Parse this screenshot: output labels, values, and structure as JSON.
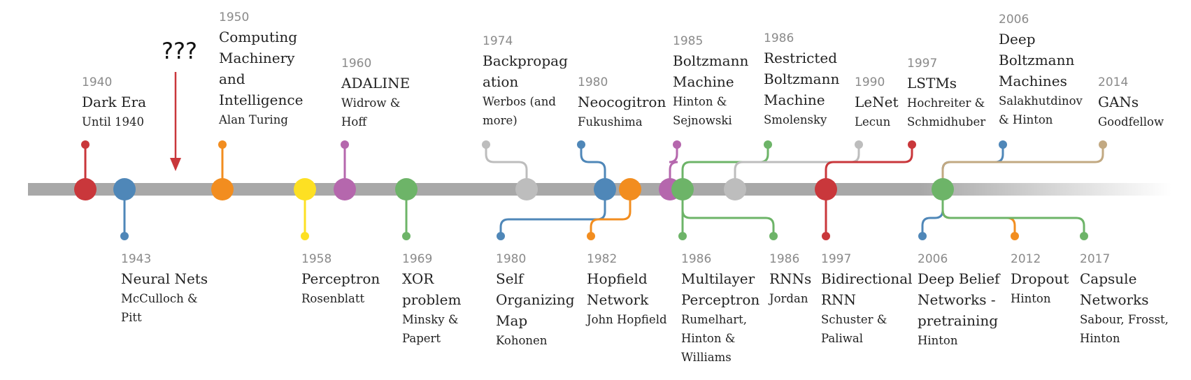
{
  "colors": {
    "red": "#c9373b",
    "blue": "#4f87b8",
    "orange": "#f28d1f",
    "yellow": "#fde023",
    "purple": "#b567ad",
    "green": "#6db468",
    "gray": "#bdbdbd",
    "tan": "#c2a982"
  },
  "marker": "???",
  "events": [
    {
      "year": "1940",
      "title": "Dark Era",
      "author": "Until 1940"
    },
    {
      "year": "1943",
      "title": "Neural Nets",
      "author": "McCulloch & Pitt"
    },
    {
      "year": "1950",
      "title": "Computing Machinery and Intelligence",
      "author": "Alan Turing"
    },
    {
      "year": "1958",
      "title": "Perceptron",
      "author": "Rosenblatt"
    },
    {
      "year": "1960",
      "title": "ADALINE",
      "author": "Widrow & Hoff"
    },
    {
      "year": "1969",
      "title": "XOR problem",
      "author": "Minsky & Papert"
    },
    {
      "year": "1974",
      "title": "Backpropagation",
      "author": "Werbos (and more)"
    },
    {
      "year": "1980",
      "title": "Neocogitron",
      "author": "Fukushima"
    },
    {
      "year": "1980",
      "title": "Self Organizing Map",
      "author": "Kohonen"
    },
    {
      "year": "1982",
      "title": "Hopfield Network",
      "author": "John Hopfield"
    },
    {
      "year": "1985",
      "title": "Boltzmann Machine",
      "author": "Hinton & Sejnowski"
    },
    {
      "year": "1986",
      "title": "Restricted Boltzmann Machine",
      "author": "Smolensky"
    },
    {
      "year": "1986",
      "title": "Multilayer Perceptron",
      "author": "Rumelhart, Hinton & Williams"
    },
    {
      "year": "1986",
      "title": "RNNs",
      "author": "Jordan"
    },
    {
      "year": "1990",
      "title": "LeNet",
      "author": "Lecun"
    },
    {
      "year": "1997",
      "title": "LSTMs",
      "author": "Hochreiter & Schmidhuber"
    },
    {
      "year": "1997",
      "title": "Bidirectional RNN",
      "author": "Schuster & Paliwal"
    },
    {
      "year": "2006",
      "title": "Deep Boltzmann Machines",
      "author": "Salakhutdinov & Hinton"
    },
    {
      "year": "2006",
      "title": "Deep Belief Networks - pretraining",
      "author": "Hinton"
    },
    {
      "year": "2012",
      "title": "Dropout",
      "author": "Hinton"
    },
    {
      "year": "2014",
      "title": "GANs",
      "author": "Goodfellow"
    },
    {
      "year": "2017",
      "title": "Capsule Networks",
      "author": "Sabour, Frosst, Hinton"
    }
  ]
}
